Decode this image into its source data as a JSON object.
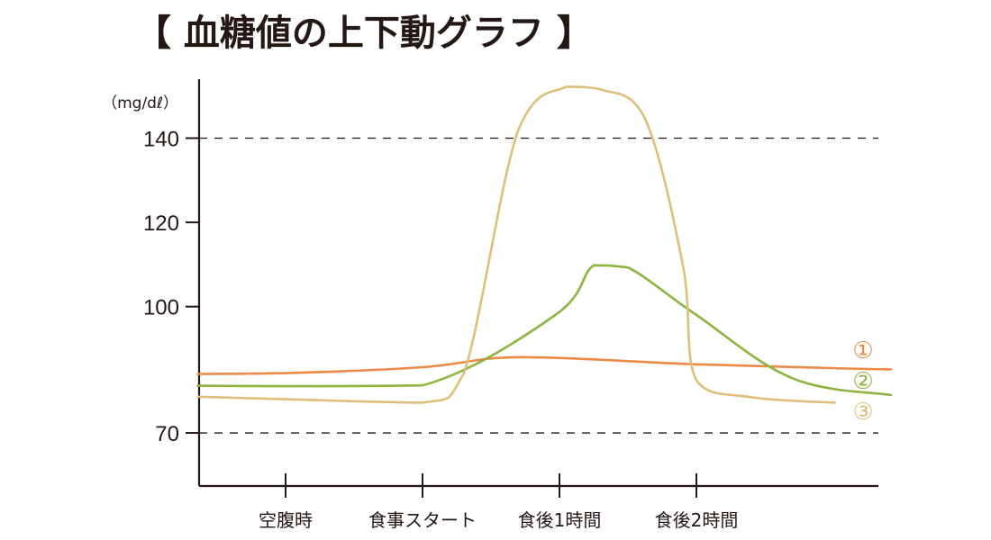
{
  "chart_data": {
    "type": "line",
    "title": "【 血糖値の上下動グラフ 】",
    "ylabel_unit": "（mg/dℓ）",
    "y_ticks": [
      140,
      120,
      100,
      70
    ],
    "dashed_reference_lines": [
      140,
      70
    ],
    "ylim": [
      57.4,
      154
    ],
    "categories": [
      "空腹時",
      "食事スタート",
      "食後1時間",
      "食後2時間"
    ],
    "grid": false,
    "legend_placement": "right",
    "series": [
      {
        "name": "①",
        "color": "#ec8a48",
        "points": [
          [
            -0.64,
            84
          ],
          [
            0,
            84.2
          ],
          [
            1,
            85.6
          ],
          [
            1.72,
            88
          ],
          [
            3,
            86.3
          ],
          [
            4.1,
            85.3
          ],
          [
            4.42,
            85.1
          ]
        ]
      },
      {
        "name": "②",
        "color": "#8db441",
        "points": [
          [
            -0.64,
            81.2
          ],
          [
            0,
            81.1
          ],
          [
            1,
            81.3
          ],
          [
            1.97,
            98
          ],
          [
            2.25,
            109.8
          ],
          [
            2.5,
            109.3
          ],
          [
            3,
            98
          ],
          [
            3.7,
            83
          ],
          [
            4.42,
            79
          ]
        ]
      },
      {
        "name": "③",
        "color": "#dcbf7b",
        "points": [
          [
            -0.64,
            78.6
          ],
          [
            0,
            78
          ],
          [
            1,
            77.2
          ],
          [
            1.3,
            84
          ],
          [
            1.7,
            142
          ],
          [
            2.05,
            152.2
          ],
          [
            2.3,
            151.6
          ],
          [
            2.62,
            145
          ],
          [
            2.9,
            110
          ],
          [
            3,
            82.5
          ],
          [
            3.4,
            78.5
          ],
          [
            4.01,
            77.2
          ]
        ]
      }
    ]
  }
}
